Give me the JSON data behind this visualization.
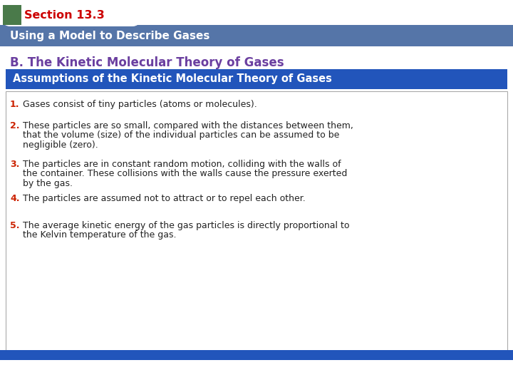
{
  "section_label": "Section 13.3",
  "subtitle": "Using a Model to Describe Gases",
  "heading": "B. The Kinetic Molecular Theory of Gases",
  "box_title": "Assumptions of the Kinetic Molecular Theory of Gases",
  "items": [
    "Gases consist of tiny particles (atoms or molecules).",
    "These particles are so small, compared with the distances between them, that the volume (size) of the individual particles can be assumed to be negligible (zero).",
    "The particles are in constant random motion, colliding with the walls of the container. These collisions with the walls cause the pressure exerted by the gas.",
    "The particles are assumed not to attract or to repel each other.",
    "The average kinetic energy of the gas particles is directly proportional to the Kelvin temperature of the gas."
  ],
  "bg_color": "#ffffff",
  "header_bg": "#5575a8",
  "section_tab_bg": "#4a7a4a",
  "section_text_color": "#cc0000",
  "subtitle_text_color": "#ffffff",
  "heading_text_color": "#6b3fa0",
  "box_bg": "#2255bb",
  "box_title_color": "#ffffff",
  "number_color": "#cc2200",
  "body_text_color": "#222222",
  "bottom_bar_color": "#2255bb",
  "item_lines": [
    [
      "Gases consist of tiny particles (atoms or molecules)."
    ],
    [
      "These particles are so small, compared with the distances between them,",
      "that the volume (size) of the individual particles can be assumed to be",
      "negligible (zero)."
    ],
    [
      "The particles are in constant random motion, colliding with the walls of",
      "the container. These collisions with the walls cause the pressure exerted",
      "by the gas."
    ],
    [
      "The particles are assumed not to attract or to repel each other."
    ],
    [
      "The average kinetic energy of the gas particles is directly proportional to",
      "the Kelvin temperature of the gas."
    ]
  ]
}
